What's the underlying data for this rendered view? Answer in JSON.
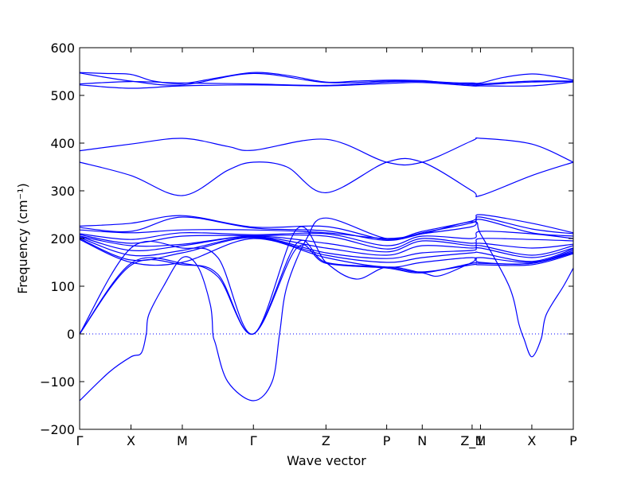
{
  "chart_data": {
    "type": "line",
    "xlabel": "Wave vector",
    "ylabel": "Frequency (cm⁻¹)",
    "ylim": [
      -200,
      600
    ],
    "yticks": [
      -200,
      -100,
      0,
      100,
      200,
      300,
      400,
      500,
      600
    ],
    "grid": false,
    "line_color": "#0000ff",
    "zero_line": {
      "y": 0,
      "style": "dotted",
      "color": "#0000ff"
    },
    "high_symmetry_points": [
      {
        "label": "Γ",
        "x": 0.0
      },
      {
        "label": "X",
        "x": 0.104
      },
      {
        "label": "M",
        "x": 0.208
      },
      {
        "label": "Γ",
        "x": 0.352
      },
      {
        "label": "Z",
        "x": 0.499
      },
      {
        "label": "P",
        "x": 0.622
      },
      {
        "label": "N",
        "x": 0.694
      },
      {
        "label": "Z_1",
        "x": 0.795
      },
      {
        "label": "M",
        "x": 0.812
      },
      {
        "label": "X",
        "x": 0.916
      },
      {
        "label": "P",
        "x": 1.0
      }
    ],
    "series": [
      {
        "points": [
          [
            0.0,
            548
          ],
          [
            0.05,
            546
          ],
          [
            0.104,
            544
          ],
          [
            0.15,
            530
          ],
          [
            0.208,
            525
          ],
          [
            0.28,
            537
          ],
          [
            0.352,
            548
          ],
          [
            0.42,
            542
          ],
          [
            0.499,
            528
          ],
          [
            0.56,
            530
          ],
          [
            0.622,
            532
          ],
          [
            0.694,
            531
          ],
          [
            0.74,
            527
          ],
          [
            0.795,
            526
          ],
          [
            0.812,
            526
          ],
          [
            0.86,
            538
          ],
          [
            0.916,
            545
          ],
          [
            0.96,
            540
          ],
          [
            1.0,
            532
          ]
        ]
      },
      {
        "points": [
          [
            0.0,
            547
          ],
          [
            0.104,
            530
          ],
          [
            0.208,
            522
          ],
          [
            0.352,
            546
          ],
          [
            0.499,
            527
          ],
          [
            0.622,
            530
          ],
          [
            0.694,
            530
          ],
          [
            0.795,
            524
          ],
          [
            0.812,
            524
          ],
          [
            0.916,
            530
          ],
          [
            1.0,
            530
          ]
        ]
      },
      {
        "points": [
          [
            0.0,
            524
          ],
          [
            0.104,
            529
          ],
          [
            0.208,
            526
          ],
          [
            0.352,
            524
          ],
          [
            0.499,
            521
          ],
          [
            0.622,
            528
          ],
          [
            0.694,
            529
          ],
          [
            0.795,
            522
          ],
          [
            0.812,
            522
          ],
          [
            0.916,
            528
          ],
          [
            1.0,
            529
          ]
        ]
      },
      {
        "points": [
          [
            0.0,
            522
          ],
          [
            0.104,
            515
          ],
          [
            0.208,
            520
          ],
          [
            0.352,
            522
          ],
          [
            0.499,
            520
          ],
          [
            0.622,
            525
          ],
          [
            0.694,
            527
          ],
          [
            0.795,
            520
          ],
          [
            0.812,
            520
          ],
          [
            0.916,
            520
          ],
          [
            1.0,
            528
          ]
        ]
      },
      {
        "points": [
          [
            0.0,
            384
          ],
          [
            0.104,
            398
          ],
          [
            0.208,
            410
          ],
          [
            0.3,
            393
          ],
          [
            0.352,
            385
          ],
          [
            0.499,
            408
          ],
          [
            0.622,
            360
          ],
          [
            0.694,
            360
          ],
          [
            0.795,
            405
          ],
          [
            0.812,
            410
          ],
          [
            0.916,
            398
          ],
          [
            1.0,
            360
          ]
        ]
      },
      {
        "points": [
          [
            0.0,
            360
          ],
          [
            0.104,
            332
          ],
          [
            0.208,
            290
          ],
          [
            0.3,
            343
          ],
          [
            0.352,
            360
          ],
          [
            0.42,
            350
          ],
          [
            0.499,
            296
          ],
          [
            0.622,
            360
          ],
          [
            0.694,
            360
          ],
          [
            0.795,
            300
          ],
          [
            0.812,
            290
          ],
          [
            0.916,
            332
          ],
          [
            1.0,
            360
          ]
        ]
      },
      {
        "points": [
          [
            0.0,
            226
          ],
          [
            0.104,
            232
          ],
          [
            0.208,
            248
          ],
          [
            0.352,
            224
          ],
          [
            0.499,
            225
          ],
          [
            0.622,
            198
          ],
          [
            0.694,
            215
          ],
          [
            0.795,
            237
          ],
          [
            0.812,
            250
          ],
          [
            0.916,
            232
          ],
          [
            1.0,
            212
          ]
        ]
      },
      {
        "points": [
          [
            0.0,
            223
          ],
          [
            0.104,
            215
          ],
          [
            0.208,
            245
          ],
          [
            0.352,
            222
          ],
          [
            0.499,
            216
          ],
          [
            0.622,
            196
          ],
          [
            0.694,
            212
          ],
          [
            0.795,
            233
          ],
          [
            0.812,
            245
          ],
          [
            0.916,
            220
          ],
          [
            1.0,
            210
          ]
        ]
      },
      {
        "points": [
          [
            0.0,
            218
          ],
          [
            0.104,
            212
          ],
          [
            0.208,
            218
          ],
          [
            0.352,
            218
          ],
          [
            0.499,
            212
          ],
          [
            0.622,
            200
          ],
          [
            0.694,
            210
          ],
          [
            0.795,
            225
          ],
          [
            0.812,
            240
          ],
          [
            0.916,
            212
          ],
          [
            1.0,
            205
          ]
        ]
      },
      {
        "points": [
          [
            0.0,
            210
          ],
          [
            0.104,
            198
          ],
          [
            0.208,
            212
          ],
          [
            0.352,
            208
          ],
          [
            0.499,
            210
          ],
          [
            0.622,
            185
          ],
          [
            0.694,
            205
          ],
          [
            0.795,
            200
          ],
          [
            0.812,
            215
          ],
          [
            0.916,
            210
          ],
          [
            1.0,
            200
          ]
        ]
      },
      {
        "points": [
          [
            0.0,
            208
          ],
          [
            0.104,
            190
          ],
          [
            0.208,
            205
          ],
          [
            0.352,
            206
          ],
          [
            0.499,
            205
          ],
          [
            0.622,
            178
          ],
          [
            0.694,
            200
          ],
          [
            0.795,
            190
          ],
          [
            0.812,
            200
          ],
          [
            0.916,
            198
          ],
          [
            1.0,
            195
          ]
        ]
      },
      {
        "points": [
          [
            0.0,
            205
          ],
          [
            0.104,
            185
          ],
          [
            0.208,
            188
          ],
          [
            0.352,
            205
          ],
          [
            0.499,
            190
          ],
          [
            0.622,
            172
          ],
          [
            0.694,
            195
          ],
          [
            0.795,
            185
          ],
          [
            0.812,
            190
          ],
          [
            0.916,
            180
          ],
          [
            1.0,
            188
          ]
        ]
      },
      {
        "points": [
          [
            0.0,
            204
          ],
          [
            0.104,
            175
          ],
          [
            0.208,
            185
          ],
          [
            0.352,
            204
          ],
          [
            0.499,
            180
          ],
          [
            0.622,
            165
          ],
          [
            0.694,
            185
          ],
          [
            0.795,
            180
          ],
          [
            0.812,
            185
          ],
          [
            0.916,
            165
          ],
          [
            1.0,
            185
          ]
        ]
      },
      {
        "points": [
          [
            0.0,
            202
          ],
          [
            0.104,
            165
          ],
          [
            0.208,
            175
          ],
          [
            0.352,
            203
          ],
          [
            0.499,
            170
          ],
          [
            0.622,
            158
          ],
          [
            0.694,
            170
          ],
          [
            0.795,
            175
          ],
          [
            0.812,
            180
          ],
          [
            0.916,
            160
          ],
          [
            1.0,
            180
          ]
        ]
      },
      {
        "points": [
          [
            0.0,
            200
          ],
          [
            0.104,
            155
          ],
          [
            0.208,
            170
          ],
          [
            0.352,
            202
          ],
          [
            0.499,
            165
          ],
          [
            0.622,
            150
          ],
          [
            0.694,
            160
          ],
          [
            0.795,
            170
          ],
          [
            0.812,
            170
          ],
          [
            0.916,
            152
          ],
          [
            1.0,
            178
          ]
        ]
      },
      {
        "points": [
          [
            0.0,
            198
          ],
          [
            0.104,
            150
          ],
          [
            0.208,
            150
          ],
          [
            0.352,
            200
          ],
          [
            0.499,
            160
          ],
          [
            0.622,
            140
          ],
          [
            0.694,
            150
          ],
          [
            0.795,
            160
          ],
          [
            0.812,
            150
          ],
          [
            0.916,
            148
          ],
          [
            1.0,
            175
          ]
        ]
      },
      {
        "points": [
          [
            0.0,
            0
          ],
          [
            0.104,
            180
          ],
          [
            0.208,
            180
          ],
          [
            0.28,
            160
          ],
          [
            0.352,
            0
          ],
          [
            0.44,
            220
          ],
          [
            0.499,
            150
          ],
          [
            0.56,
            115
          ],
          [
            0.622,
            140
          ],
          [
            0.694,
            128
          ],
          [
            0.73,
            122
          ],
          [
            0.795,
            150
          ],
          [
            0.812,
            160
          ],
          [
            0.916,
            150
          ],
          [
            1.0,
            172
          ]
        ]
      },
      {
        "points": [
          [
            0.0,
            0
          ],
          [
            0.104,
            148
          ],
          [
            0.208,
            148
          ],
          [
            0.28,
            120
          ],
          [
            0.352,
            0
          ],
          [
            0.44,
            180
          ],
          [
            0.499,
            148
          ],
          [
            0.622,
            138
          ],
          [
            0.694,
            128
          ],
          [
            0.795,
            148
          ],
          [
            0.812,
            148
          ],
          [
            0.916,
            148
          ],
          [
            1.0,
            170
          ]
        ]
      },
      {
        "points": [
          [
            0.0,
            0
          ],
          [
            0.104,
            144
          ],
          [
            0.208,
            145
          ],
          [
            0.28,
            125
          ],
          [
            0.352,
            0
          ],
          [
            0.44,
            190
          ],
          [
            0.499,
            150
          ],
          [
            0.622,
            140
          ],
          [
            0.694,
            130
          ],
          [
            0.795,
            145
          ],
          [
            0.812,
            145
          ],
          [
            0.916,
            145
          ],
          [
            1.0,
            168
          ]
        ]
      },
      {
        "points": [
          [
            0.0,
            -140
          ],
          [
            0.06,
            -80
          ],
          [
            0.104,
            -48
          ],
          [
            0.125,
            -40
          ],
          [
            0.135,
            0
          ],
          [
            0.14,
            40
          ],
          [
            0.17,
            100
          ],
          [
            0.208,
            160
          ],
          [
            0.24,
            140
          ],
          [
            0.265,
            60
          ],
          [
            0.27,
            0
          ],
          [
            0.275,
            -20
          ],
          [
            0.3,
            -100
          ],
          [
            0.352,
            -140
          ],
          [
            0.39,
            -100
          ],
          [
            0.405,
            0
          ],
          [
            0.42,
            100
          ],
          [
            0.46,
            200
          ],
          [
            0.499,
            243
          ],
          [
            0.622,
            200
          ],
          [
            0.694,
            210
          ],
          [
            0.795,
            235
          ],
          [
            0.812,
            210
          ],
          [
            0.87,
            100
          ],
          [
            0.89,
            20
          ],
          [
            0.9,
            -10
          ],
          [
            0.916,
            -48
          ],
          [
            0.935,
            -10
          ],
          [
            0.945,
            40
          ],
          [
            0.98,
            100
          ],
          [
            1.0,
            138
          ]
        ]
      }
    ]
  }
}
